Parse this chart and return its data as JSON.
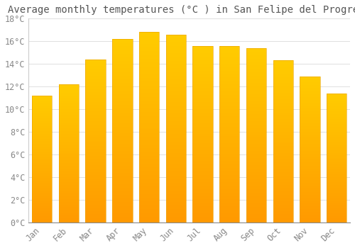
{
  "title": "Average monthly temperatures (°C ) in San Felipe del Progreso",
  "months": [
    "Jan",
    "Feb",
    "Mar",
    "Apr",
    "May",
    "Jun",
    "Jul",
    "Aug",
    "Sep",
    "Oct",
    "Nov",
    "Dec"
  ],
  "values": [
    11.2,
    12.2,
    14.4,
    16.2,
    16.8,
    16.6,
    15.6,
    15.6,
    15.4,
    14.3,
    12.9,
    11.4
  ],
  "bar_color_top": "#FFCC00",
  "bar_color_bottom": "#FF9900",
  "background_color": "#FFFFFF",
  "grid_color": "#E0E0E0",
  "ylim": [
    0,
    18
  ],
  "yticks": [
    0,
    2,
    4,
    6,
    8,
    10,
    12,
    14,
    16,
    18
  ],
  "title_fontsize": 10,
  "tick_fontsize": 8.5,
  "tick_label_color": "#888888",
  "title_color": "#555555",
  "bar_width": 0.75
}
